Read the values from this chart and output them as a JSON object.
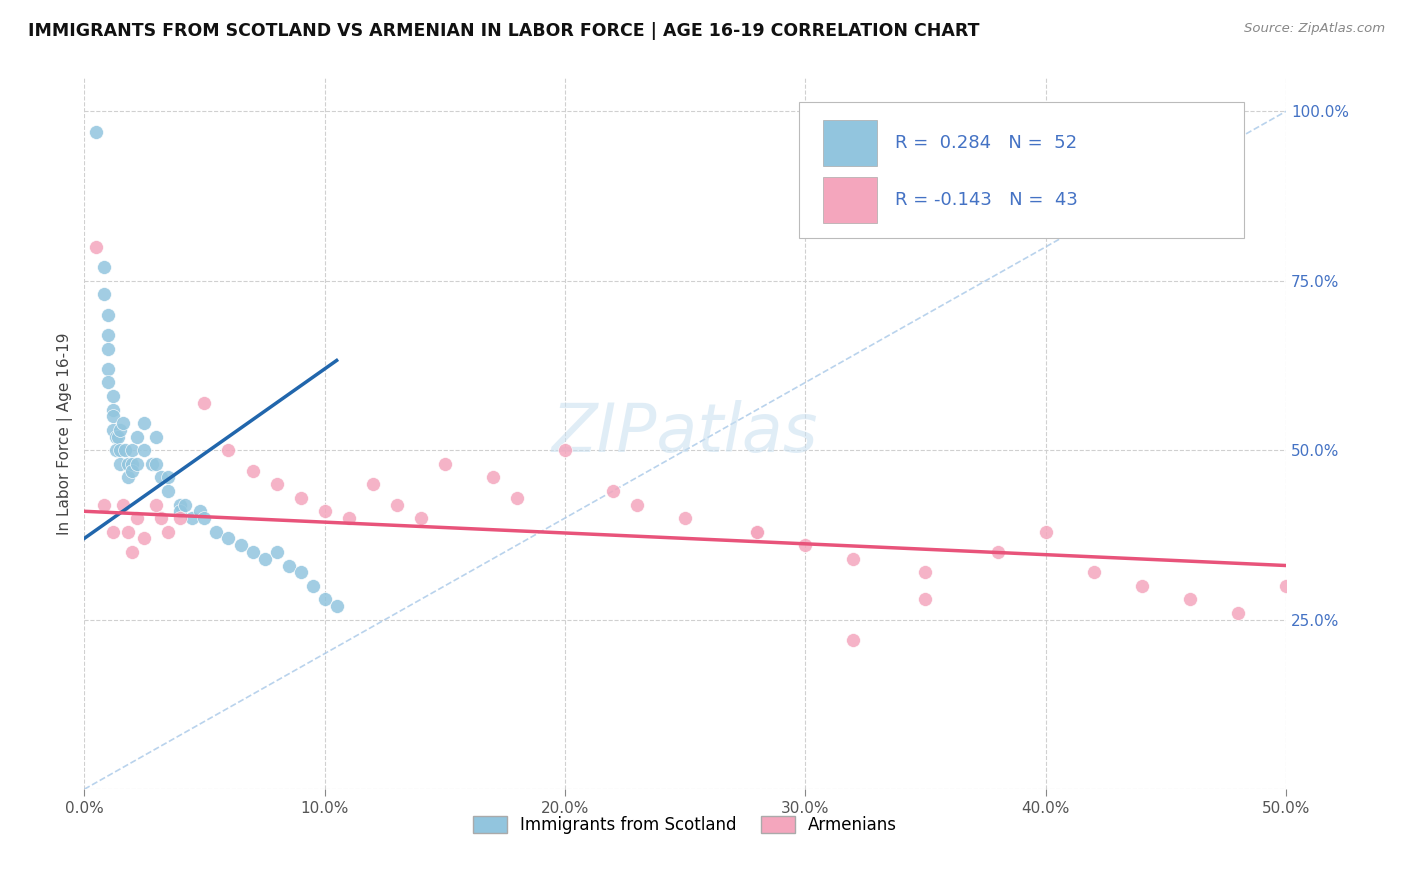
{
  "title": "IMMIGRANTS FROM SCOTLAND VS ARMENIAN IN LABOR FORCE | AGE 16-19 CORRELATION CHART",
  "source": "Source: ZipAtlas.com",
  "ylabel_left": "In Labor Force | Age 16-19",
  "xlim": [
    0.0,
    0.5
  ],
  "ylim": [
    0.0,
    1.05
  ],
  "xticks": [
    0.0,
    0.1,
    0.2,
    0.3,
    0.4,
    0.5
  ],
  "xtick_labels": [
    "0.0%",
    "10.0%",
    "20.0%",
    "30.0%",
    "40.0%",
    "50.0%"
  ],
  "yticks_right": [
    0.25,
    0.5,
    0.75,
    1.0
  ],
  "ytick_labels_right": [
    "25.0%",
    "50.0%",
    "75.0%",
    "100.0%"
  ],
  "scotland_color": "#92c5de",
  "armenian_color": "#f4a6bd",
  "scotland_trend_color": "#2166ac",
  "armenian_trend_color": "#e8537a",
  "diagonal_color": "#a8c8e8",
  "background_color": "#ffffff",
  "grid_color": "#d0d0d0",
  "watermark": "ZIPatlas",
  "legend_box_color": "#4472c4",
  "scotland_R": "0.284",
  "scotland_N": "52",
  "armenian_R": "-0.143",
  "armenian_N": "43",
  "scotland_points_x": [
    0.005,
    0.008,
    0.008,
    0.01,
    0.01,
    0.01,
    0.01,
    0.01,
    0.012,
    0.012,
    0.012,
    0.012,
    0.013,
    0.013,
    0.014,
    0.015,
    0.015,
    0.015,
    0.016,
    0.017,
    0.018,
    0.018,
    0.02,
    0.02,
    0.02,
    0.022,
    0.022,
    0.025,
    0.025,
    0.028,
    0.03,
    0.03,
    0.032,
    0.035,
    0.035,
    0.04,
    0.04,
    0.042,
    0.045,
    0.048,
    0.05,
    0.055,
    0.06,
    0.065,
    0.07,
    0.075,
    0.08,
    0.085,
    0.09,
    0.095,
    0.1,
    0.105
  ],
  "scotland_points_y": [
    0.97,
    0.77,
    0.73,
    0.7,
    0.67,
    0.65,
    0.62,
    0.6,
    0.58,
    0.56,
    0.55,
    0.53,
    0.52,
    0.5,
    0.52,
    0.53,
    0.5,
    0.48,
    0.54,
    0.5,
    0.48,
    0.46,
    0.5,
    0.48,
    0.47,
    0.52,
    0.48,
    0.54,
    0.5,
    0.48,
    0.52,
    0.48,
    0.46,
    0.46,
    0.44,
    0.42,
    0.41,
    0.42,
    0.4,
    0.41,
    0.4,
    0.38,
    0.37,
    0.36,
    0.35,
    0.34,
    0.35,
    0.33,
    0.32,
    0.3,
    0.28,
    0.27
  ],
  "armenian_points_x": [
    0.005,
    0.008,
    0.012,
    0.016,
    0.018,
    0.02,
    0.022,
    0.025,
    0.03,
    0.032,
    0.035,
    0.04,
    0.05,
    0.06,
    0.07,
    0.08,
    0.09,
    0.1,
    0.11,
    0.12,
    0.13,
    0.14,
    0.15,
    0.17,
    0.18,
    0.2,
    0.22,
    0.23,
    0.25,
    0.28,
    0.3,
    0.32,
    0.35,
    0.38,
    0.4,
    0.42,
    0.44,
    0.46,
    0.48,
    0.5,
    0.28,
    0.32,
    0.35
  ],
  "armenian_points_y": [
    0.8,
    0.42,
    0.38,
    0.42,
    0.38,
    0.35,
    0.4,
    0.37,
    0.42,
    0.4,
    0.38,
    0.4,
    0.57,
    0.5,
    0.47,
    0.45,
    0.43,
    0.41,
    0.4,
    0.45,
    0.42,
    0.4,
    0.48,
    0.46,
    0.43,
    0.5,
    0.44,
    0.42,
    0.4,
    0.38,
    0.36,
    0.34,
    0.32,
    0.35,
    0.38,
    0.32,
    0.3,
    0.28,
    0.26,
    0.3,
    0.38,
    0.22,
    0.28
  ]
}
